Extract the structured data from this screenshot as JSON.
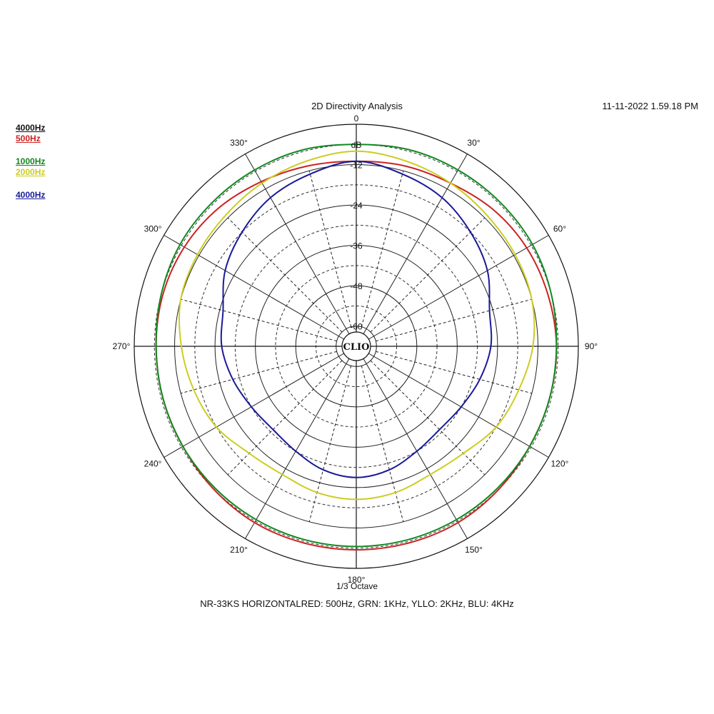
{
  "header": {
    "title": "2D Directivity Analysis",
    "timestamp": "11-11-2022 1.59.18 PM"
  },
  "legend": [
    {
      "label": "4000Hz",
      "color": "#111111"
    },
    {
      "label": "500Hz",
      "color": "#cc2222"
    },
    {
      "label": "1000Hz",
      "color": "#118822"
    },
    {
      "label": "2000Hz",
      "color": "#cccc22"
    },
    {
      "label": "4000Hz",
      "color": "#1a1a99"
    }
  ],
  "footer": {
    "octave": "1/3 Octave",
    "caption": "NR-33KS HORIZONTALRED: 500Hz, GRN: 1KHz, YLLO: 2KHz, BLU: 4KHz"
  },
  "logo": "CLIO",
  "chart_data": {
    "type": "polar",
    "title": "2D Directivity Analysis",
    "unit_label": "dB",
    "radial_range": [
      -66,
      0
    ],
    "radial_ticks": [
      -12,
      -24,
      -36,
      -48,
      -60
    ],
    "radial_tick_labels": [
      "-12",
      "-24",
      "-36",
      "-48",
      "-60"
    ],
    "angle_labels": [
      "0",
      "30°",
      "60°",
      "90°",
      "120°",
      "150°",
      "180°",
      "210°",
      "240°",
      "270°",
      "300°",
      "330°"
    ],
    "angle_label_degrees": [
      0,
      30,
      60,
      90,
      120,
      150,
      180,
      210,
      240,
      270,
      300,
      330
    ],
    "angle_lines_step_deg": 15,
    "series": [
      {
        "name": "500Hz",
        "color": "#cc2222",
        "angles": [
          0,
          15,
          30,
          45,
          60,
          75,
          90,
          105,
          120,
          135,
          150,
          165,
          180,
          195,
          210,
          225,
          240,
          255,
          270,
          285,
          300,
          315,
          330,
          345
        ],
        "values": [
          -11,
          -10.5,
          -10,
          -8.5,
          -7.5,
          -7,
          -6.5,
          -6.5,
          -6.5,
          -6,
          -5.5,
          -5.5,
          -5.5,
          -5.5,
          -5.5,
          -6,
          -6.5,
          -6.5,
          -6.5,
          -6.5,
          -7,
          -8,
          -9.5,
          -10.5
        ]
      },
      {
        "name": "1000Hz",
        "color": "#118822",
        "angles": [
          0,
          15,
          30,
          45,
          60,
          75,
          90,
          105,
          120,
          135,
          150,
          165,
          180,
          195,
          210,
          225,
          240,
          255,
          270,
          285,
          300,
          315,
          330,
          345
        ],
        "values": [
          -6,
          -5.5,
          -5.5,
          -5.5,
          -5.5,
          -6,
          -6.5,
          -6.5,
          -6.5,
          -6.5,
          -6.5,
          -6.5,
          -6.5,
          -6.5,
          -6.5,
          -6.5,
          -6.5,
          -6.5,
          -6.5,
          -6,
          -5.5,
          -5.5,
          -5.5,
          -5.5
        ]
      },
      {
        "name": "2000Hz",
        "color": "#cccc22",
        "angles": [
          0,
          15,
          30,
          45,
          60,
          75,
          90,
          105,
          120,
          135,
          150,
          165,
          180,
          195,
          210,
          225,
          240,
          255,
          270,
          285,
          300,
          315,
          330,
          345
        ],
        "values": [
          -8,
          -9,
          -10,
          -11,
          -11.5,
          -12,
          -13.5,
          -16,
          -18,
          -21,
          -22,
          -21,
          -20.5,
          -21,
          -22,
          -21,
          -18,
          -16,
          -14,
          -12,
          -11.5,
          -11,
          -10,
          -9
        ]
      },
      {
        "name": "4000Hz",
        "color": "#1a1a99",
        "angles": [
          0,
          15,
          30,
          45,
          60,
          75,
          90,
          105,
          120,
          135,
          150,
          165,
          180,
          195,
          210,
          225,
          240,
          255,
          270,
          285,
          300,
          315,
          330,
          345
        ],
        "values": [
          -11,
          -13,
          -15,
          -18,
          -21,
          -25,
          -26,
          -28,
          -30,
          -31,
          -30,
          -28,
          -27,
          -28,
          -30,
          -31,
          -30,
          -28,
          -26,
          -25,
          -21,
          -18,
          -15,
          -13
        ]
      }
    ]
  }
}
